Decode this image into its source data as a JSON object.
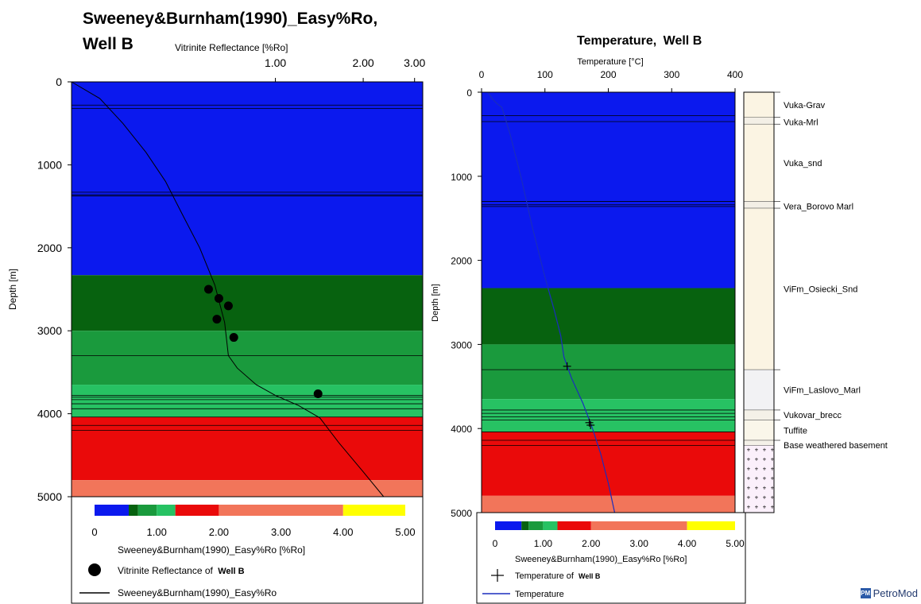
{
  "chart_data": [
    {
      "type": "line",
      "title": "Sweeney&Burnham(1990)_Easy%Ro,",
      "title_line2": "Well B",
      "xlabel": "Vitrinite Reflectance [%Ro]",
      "ylabel": "Depth [m]",
      "x_scale": "log",
      "xlim": [
        0.2,
        3.2
      ],
      "ylim": [
        0,
        5000
      ],
      "x_ticks": [
        "1.00",
        "2.00",
        "3.00"
      ],
      "x_tick_values": [
        1.0,
        2.0,
        3.0
      ],
      "y_ticks": [
        "0",
        "1000",
        "2000",
        "3000",
        "4000",
        "5000"
      ],
      "y_tick_values": [
        0,
        1000,
        2000,
        3000,
        4000,
        5000
      ],
      "background_bands": [
        {
          "top": 0,
          "bottom": 2330,
          "color": "#0b19ee"
        },
        {
          "top": 2330,
          "bottom": 3000,
          "color": "#07620f"
        },
        {
          "top": 3000,
          "bottom": 3650,
          "color": "#1a9a3d"
        },
        {
          "top": 3650,
          "bottom": 4040,
          "color": "#27c263"
        },
        {
          "top": 4040,
          "bottom": 4800,
          "color": "#ea0a0a"
        },
        {
          "top": 4800,
          "bottom": 5000,
          "color": "#f2755a"
        }
      ],
      "horizon_depths": [
        280,
        320,
        1330,
        1360,
        1375,
        3300,
        3780,
        3800,
        3830,
        3880,
        3940,
        4040,
        4140,
        4200
      ],
      "series": [
        {
          "name": "Vitrinite Reflectance of Well B",
          "kind": "points",
          "color": "#000000",
          "x": [
            0.59,
            0.64,
            0.69,
            0.63,
            0.72,
            1.4
          ],
          "y": [
            2500,
            2610,
            2700,
            2860,
            3080,
            3760
          ]
        },
        {
          "name": "Sweeney&Burnham(1990)_Easy%Ro",
          "kind": "line",
          "color": "#000000",
          "x": [
            0.2,
            0.25,
            0.3,
            0.36,
            0.42,
            0.48,
            0.55,
            0.62,
            0.67,
            0.69,
            0.74,
            0.86,
            1.0,
            1.2,
            1.42,
            1.65,
            2.0,
            2.35
          ],
          "y": [
            0,
            200,
            500,
            850,
            1200,
            1600,
            2000,
            2450,
            2900,
            3300,
            3450,
            3650,
            3780,
            3900,
            4050,
            4350,
            4700,
            5000
          ]
        }
      ],
      "colorbar": {
        "label": "Sweeney&Burnham(1990)_Easy%Ro [%Ro]",
        "range": [
          0,
          5
        ],
        "ticks": [
          "0",
          "1.00",
          "2.00",
          "3.00",
          "4.00",
          "5.00"
        ],
        "tick_values": [
          0,
          1,
          2,
          3,
          4,
          5
        ],
        "segments": [
          {
            "from": 0.0,
            "to": 0.55,
            "color": "#0b19ee"
          },
          {
            "from": 0.55,
            "to": 0.7,
            "color": "#07620f"
          },
          {
            "from": 0.7,
            "to": 1.0,
            "color": "#1a9a3d"
          },
          {
            "from": 1.0,
            "to": 1.3,
            "color": "#27c263"
          },
          {
            "from": 1.3,
            "to": 2.0,
            "color": "#ea0a0a"
          },
          {
            "from": 2.0,
            "to": 4.0,
            "color": "#f2755a"
          },
          {
            "from": 4.0,
            "to": 5.0,
            "color": "#ffff00"
          }
        ]
      },
      "legend": {
        "placement": "bottom",
        "items": [
          {
            "label": "Vitrinite Reflectance of",
            "well": "Well B",
            "symbol": "dot"
          },
          {
            "label": "Sweeney&Burnham(1990)_Easy%Ro",
            "symbol": "line-black"
          }
        ]
      }
    },
    {
      "type": "line",
      "title": "Temperature,",
      "title_well": "Well B",
      "xlabel": "Temperature [°C]",
      "ylabel": "Depth [m]",
      "xlim": [
        0,
        400
      ],
      "ylim": [
        0,
        5000
      ],
      "x_ticks": [
        "0",
        "100",
        "200",
        "300",
        "400"
      ],
      "x_tick_values": [
        0,
        100,
        200,
        300,
        400
      ],
      "y_ticks": [
        "0",
        "1000",
        "2000",
        "3000",
        "4000",
        "5000"
      ],
      "y_tick_values": [
        0,
        1000,
        2000,
        3000,
        4000,
        5000
      ],
      "background_bands": [
        {
          "top": 0,
          "bottom": 2330,
          "color": "#0b19ee"
        },
        {
          "top": 2330,
          "bottom": 3000,
          "color": "#07620f"
        },
        {
          "top": 3000,
          "bottom": 3650,
          "color": "#1a9a3d"
        },
        {
          "top": 3650,
          "bottom": 4040,
          "color": "#27c263"
        },
        {
          "top": 4040,
          "bottom": 4800,
          "color": "#ea0a0a"
        },
        {
          "top": 4800,
          "bottom": 5000,
          "color": "#f2755a"
        }
      ],
      "horizon_depths": [
        280,
        350,
        1300,
        1340,
        1360,
        3300,
        3780,
        3820,
        3860,
        3900,
        4040,
        4140,
        4200
      ],
      "series": [
        {
          "name": "Temperature of Well B",
          "kind": "crosses",
          "color": "#000000",
          "x": [
            135,
            170,
            172
          ],
          "y": [
            3260,
            3930,
            3960
          ]
        },
        {
          "name": "Temperature",
          "kind": "line",
          "color": "#1a2dbd",
          "x": [
            10,
            17,
            25,
            32,
            37,
            45,
            62,
            80,
            100,
            115,
            125,
            130,
            142,
            160,
            175,
            188,
            200,
            210
          ],
          "y": [
            0,
            80,
            140,
            180,
            300,
            500,
            1000,
            1600,
            2200,
            2600,
            2900,
            3150,
            3400,
            3700,
            4000,
            4300,
            4650,
            5000
          ]
        }
      ],
      "colorbar": {
        "label": "Sweeney&Burnham(1990)_Easy%Ro [%Ro]",
        "range": [
          0,
          5
        ],
        "ticks": [
          "0",
          "1.00",
          "2.00",
          "3.00",
          "4.00",
          "5.00"
        ],
        "tick_values": [
          0,
          1,
          2,
          3,
          4,
          5
        ],
        "segments": [
          {
            "from": 0.0,
            "to": 0.55,
            "color": "#0b19ee"
          },
          {
            "from": 0.55,
            "to": 0.7,
            "color": "#07620f"
          },
          {
            "from": 0.7,
            "to": 1.0,
            "color": "#1a9a3d"
          },
          {
            "from": 1.0,
            "to": 1.3,
            "color": "#27c263"
          },
          {
            "from": 1.3,
            "to": 2.0,
            "color": "#ea0a0a"
          },
          {
            "from": 2.0,
            "to": 4.0,
            "color": "#f2755a"
          },
          {
            "from": 4.0,
            "to": 5.0,
            "color": "#ffff00"
          }
        ]
      },
      "legend": {
        "placement": "bottom",
        "items": [
          {
            "label": "Temperature of",
            "well": "Well B",
            "symbol": "cross"
          },
          {
            "label": "Temperature",
            "symbol": "line-blue"
          }
        ]
      }
    }
  ],
  "lithology_column": {
    "layers": [
      {
        "name": "Vuka-Grav",
        "top": 0,
        "bottom": 300,
        "fill": "#fbf4e3"
      },
      {
        "name": "Vuka-Mrl",
        "top": 300,
        "bottom": 380,
        "fill": "#f3efe6"
      },
      {
        "name": "Vuka_snd",
        "top": 380,
        "bottom": 1300,
        "fill": "#fbf4e3"
      },
      {
        "name": "Vera_Borovo Marl",
        "top": 1300,
        "bottom": 1380,
        "fill": "#f3efe6"
      },
      {
        "name": "ViFm_Osiecki_Snd",
        "top": 1380,
        "bottom": 3300,
        "fill": "#fbf4e3"
      },
      {
        "name": "ViFm_Laslovo_Marl",
        "top": 3300,
        "bottom": 3780,
        "fill": "#f2f2f4"
      },
      {
        "name": "Vukovar_brecc",
        "top": 3780,
        "bottom": 3900,
        "fill": "#f4f1e8"
      },
      {
        "name": "Tuffite",
        "top": 3900,
        "bottom": 4140,
        "fill": "#faf6ea"
      },
      {
        "name": "Base weathered basement",
        "top": 4140,
        "bottom": 4200,
        "fill": "#f4f1e8"
      },
      {
        "name": "",
        "top": 4200,
        "bottom": 5000,
        "fill": "#fbf0fb"
      }
    ]
  },
  "branding": {
    "logo_text": "PetroMod",
    "logo_mark": "PM"
  }
}
